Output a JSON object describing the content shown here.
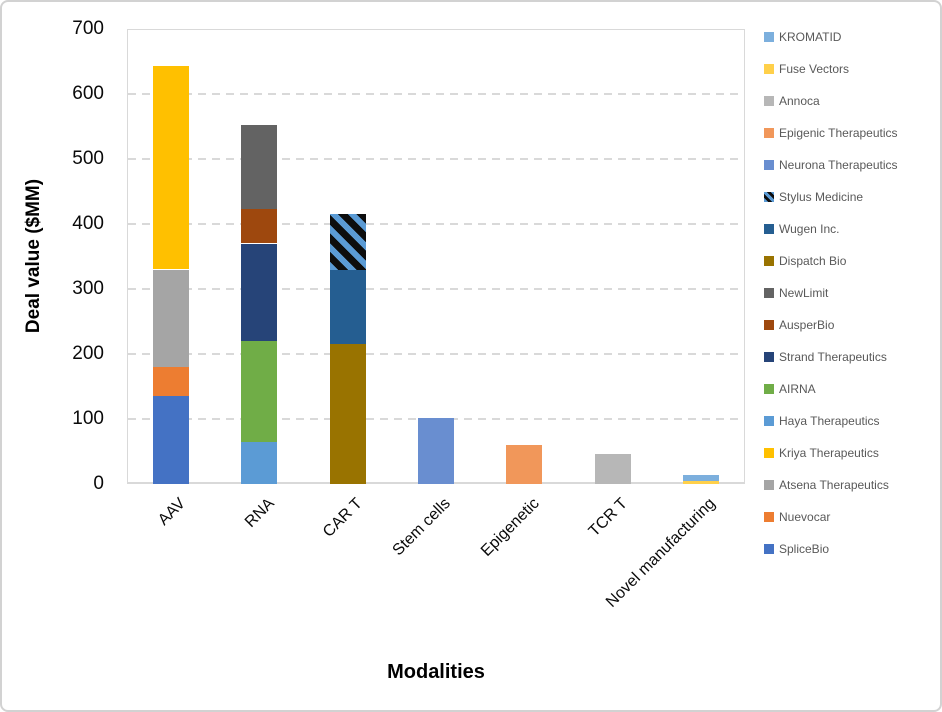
{
  "chart_data": {
    "type": "bar",
    "stacked": true,
    "xlabel": "Modalities",
    "ylabel": "Deal value ($MM)",
    "ylim": [
      0,
      700
    ],
    "yticks": [
      0,
      100,
      200,
      300,
      400,
      500,
      600,
      700
    ],
    "grid": true,
    "gridline_style": "dashed",
    "legend_position": "right",
    "categories": [
      "AAV",
      "RNA",
      "CAR T",
      "Stem cells",
      "Epigenetic",
      "TCR T",
      "Novel manufacturing"
    ],
    "series": [
      {
        "name": "SpliceBio",
        "color": "#4472C4",
        "values": [
          135,
          0,
          0,
          0,
          0,
          0,
          0
        ]
      },
      {
        "name": "Nuevocar",
        "color": "#ED7D31",
        "values": [
          45,
          0,
          0,
          0,
          0,
          0,
          0
        ]
      },
      {
        "name": "Atsena Therapeutics",
        "color": "#A5A5A5",
        "values": [
          150,
          0,
          0,
          0,
          0,
          0,
          0
        ]
      },
      {
        "name": "Kriya Therapeutics",
        "color": "#FFC000",
        "values": [
          313,
          0,
          0,
          0,
          0,
          0,
          0
        ]
      },
      {
        "name": "Haya Therapeutics",
        "color": "#5B9BD5",
        "values": [
          0,
          65,
          0,
          0,
          0,
          0,
          0
        ]
      },
      {
        "name": "AIRNA",
        "color": "#70AD47",
        "values": [
          0,
          155,
          0,
          0,
          0,
          0,
          0
        ]
      },
      {
        "name": "Strand Therapeutics",
        "color": "#264478",
        "values": [
          0,
          150,
          0,
          0,
          0,
          0,
          0
        ]
      },
      {
        "name": "AusperBio",
        "color": "#9E480E",
        "values": [
          0,
          53,
          0,
          0,
          0,
          0,
          0
        ]
      },
      {
        "name": "NewLimit",
        "color": "#636363",
        "values": [
          0,
          130,
          0,
          0,
          0,
          0,
          0
        ]
      },
      {
        "name": "Dispatch Bio",
        "color": "#997300",
        "values": [
          0,
          0,
          215,
          0,
          0,
          0,
          0
        ]
      },
      {
        "name": "Wugen Inc.",
        "color": "#255E91",
        "values": [
          0,
          0,
          115,
          0,
          0,
          0,
          0
        ]
      },
      {
        "name": "Stylus Medicine",
        "color": "#5B9BD5",
        "pattern": "diagonal-stripes",
        "values": [
          0,
          0,
          85,
          0,
          0,
          0,
          0
        ]
      },
      {
        "name": "Neurona Therapeutics",
        "color": "#698ED0",
        "values": [
          0,
          0,
          0,
          102,
          0,
          0,
          0
        ]
      },
      {
        "name": "Epigenic Therapeutics",
        "color": "#F1975A",
        "values": [
          0,
          0,
          0,
          0,
          60,
          0,
          0
        ]
      },
      {
        "name": "Annoca",
        "color": "#B7B7B7",
        "values": [
          0,
          0,
          0,
          0,
          0,
          46,
          0
        ]
      },
      {
        "name": "Fuse Vectors",
        "color": "#FFD04A",
        "values": [
          0,
          0,
          0,
          0,
          0,
          0,
          5
        ]
      },
      {
        "name": "KROMATID",
        "color": "#7CAFDD",
        "values": [
          0,
          0,
          0,
          0,
          0,
          0,
          9
        ]
      }
    ],
    "legend_order_top_to_bottom": [
      "KROMATID",
      "Fuse Vectors",
      "Annoca",
      "Epigenic Therapeutics",
      "Neurona Therapeutics",
      "Stylus Medicine",
      "Wugen Inc.",
      "Dispatch Bio",
      "NewLimit",
      "AusperBio",
      "Strand Therapeutics",
      "AIRNA",
      "Haya Therapeutics",
      "Kriya Therapeutics",
      "Atsena Therapeutics",
      "Nuevocar",
      "SpliceBio"
    ],
    "category_totals": [
      643,
      553,
      415,
      102,
      60,
      46,
      14
    ]
  },
  "colors": {
    "grid": "#D9D9D9",
    "axis_line": "#D9D9D9",
    "tick_text": "#0A0A0A",
    "legend_text": "#595959",
    "pattern_stripe": "#0D0D0D",
    "frame_border": "#D2D2D2"
  }
}
